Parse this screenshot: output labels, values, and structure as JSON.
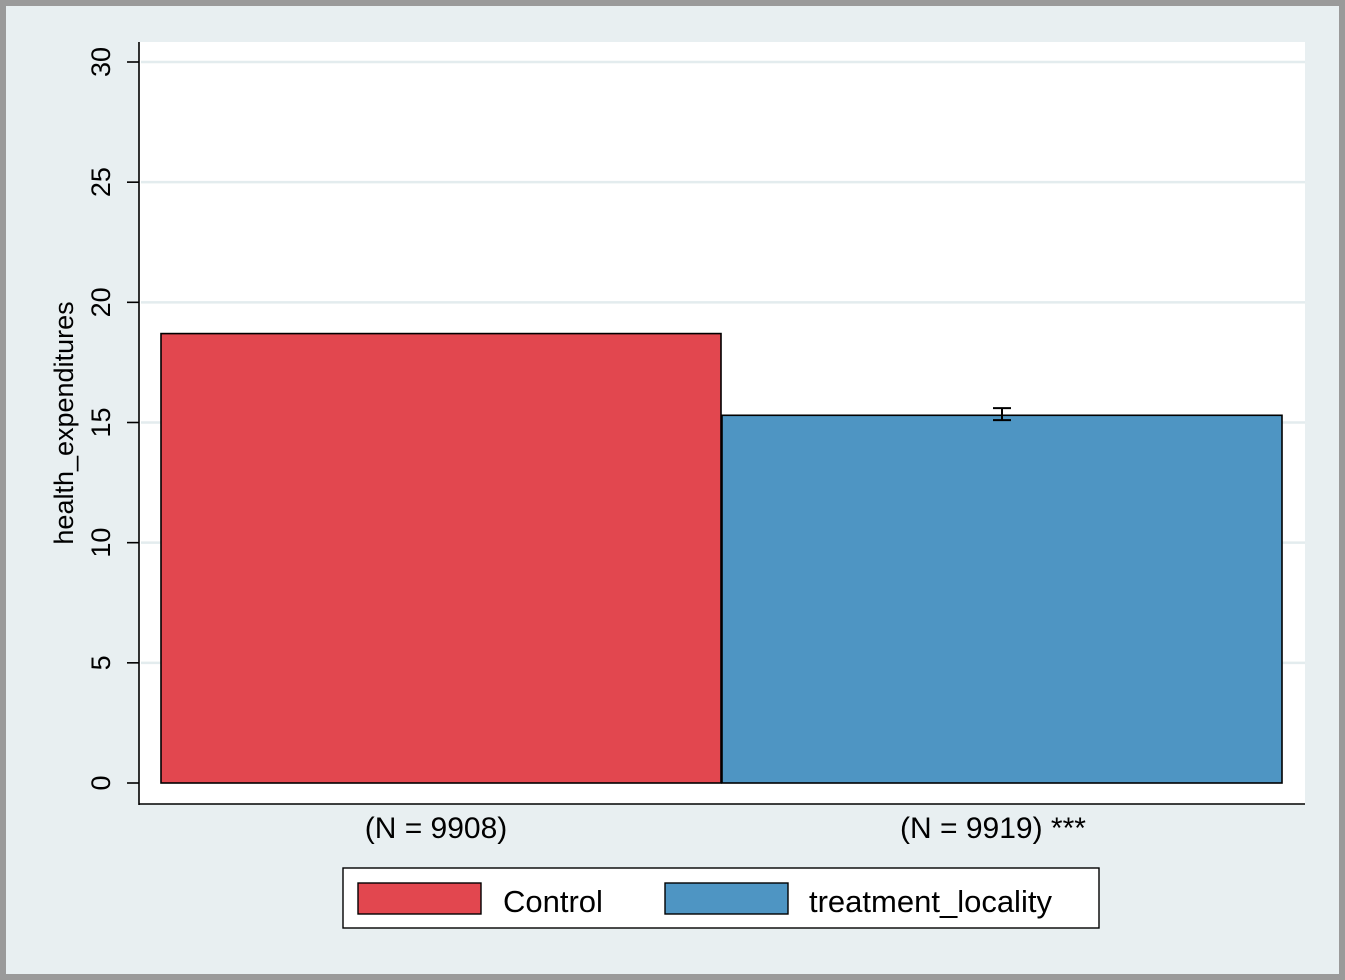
{
  "chart_data": {
    "type": "bar",
    "ylabel": "health_expenditures",
    "ylim": [
      0,
      30
    ],
    "yticks": [
      "0",
      "5",
      "10",
      "15",
      "20",
      "25",
      "30"
    ],
    "grid": true,
    "categories": [
      "(N = 9908)",
      "(N = 9919) ***"
    ],
    "series": [
      {
        "name": "Control",
        "value": 18.7,
        "color": "#e2474f",
        "error": null
      },
      {
        "name": "treatment_locality",
        "value": 15.3,
        "color": "#4e95c3",
        "error": [
          15.1,
          15.6
        ]
      }
    ],
    "legend": {
      "placement": "bottom",
      "labels": [
        "Control",
        "treatment_locality"
      ]
    }
  }
}
